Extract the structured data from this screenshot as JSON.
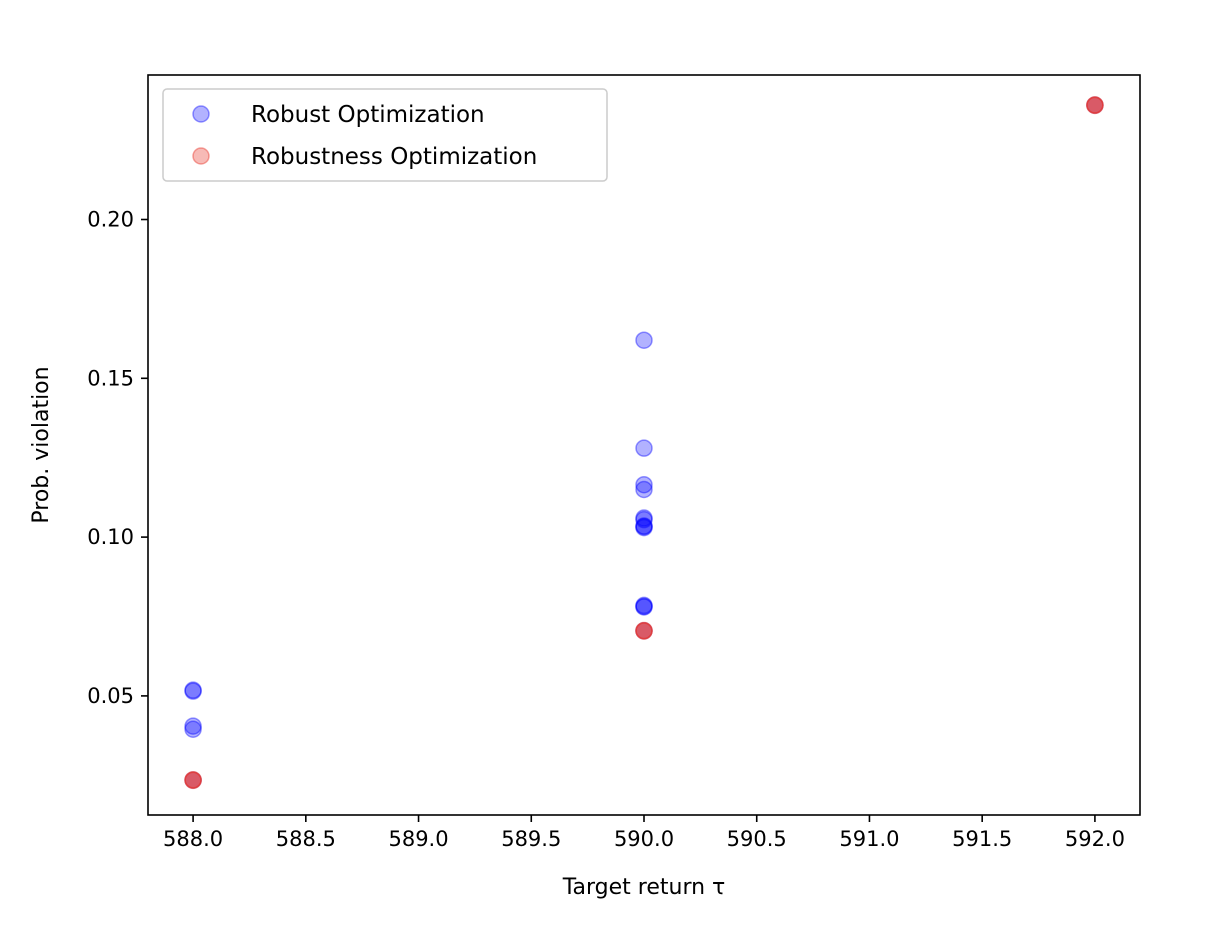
{
  "chart_data": {
    "type": "scatter",
    "title": "",
    "xlabel": "Target return τ",
    "ylabel": "Prob. violation",
    "xlim": [
      587.8,
      592.2
    ],
    "ylim": [
      0.0125,
      0.2455
    ],
    "xticks": [
      588.0,
      588.5,
      589.0,
      589.5,
      590.0,
      590.5,
      591.0,
      591.5,
      592.0
    ],
    "xtick_labels": [
      "588.0",
      "588.5",
      "589.0",
      "589.5",
      "590.0",
      "590.5",
      "591.0",
      "591.5",
      "592.0"
    ],
    "yticks": [
      0.05,
      0.1,
      0.15,
      0.2
    ],
    "ytick_labels": [
      "0.05",
      "0.10",
      "0.15",
      "0.20"
    ],
    "grid": false,
    "legend_position": "top-left",
    "series": [
      {
        "name": "Robust Optimization",
        "color": "#0000ff",
        "alpha": 0.3,
        "points": [
          {
            "x": 588.0,
            "y": 0.0515
          },
          {
            "x": 588.0,
            "y": 0.0518
          },
          {
            "x": 588.0,
            "y": 0.0395
          },
          {
            "x": 588.0,
            "y": 0.0405
          },
          {
            "x": 588.0,
            "y": 0.0235
          },
          {
            "x": 590.0,
            "y": 0.162
          },
          {
            "x": 590.0,
            "y": 0.128
          },
          {
            "x": 590.0,
            "y": 0.1165
          },
          {
            "x": 590.0,
            "y": 0.115
          },
          {
            "x": 590.0,
            "y": 0.106
          },
          {
            "x": 590.0,
            "y": 0.1055
          },
          {
            "x": 590.0,
            "y": 0.1035
          },
          {
            "x": 590.0,
            "y": 0.1033
          },
          {
            "x": 590.0,
            "y": 0.103
          },
          {
            "x": 590.0,
            "y": 0.0785
          },
          {
            "x": 590.0,
            "y": 0.0782
          },
          {
            "x": 590.0,
            "y": 0.078
          },
          {
            "x": 590.0,
            "y": 0.0705
          },
          {
            "x": 592.0,
            "y": 0.236
          }
        ]
      },
      {
        "name": "Robustness Optimization",
        "color": "#e8392f",
        "alpha": 0.35,
        "points": [
          {
            "x": 588.0,
            "y": 0.0235
          },
          {
            "x": 588.0,
            "y": 0.0236
          },
          {
            "x": 588.0,
            "y": 0.0234
          },
          {
            "x": 590.0,
            "y": 0.0705
          },
          {
            "x": 590.0,
            "y": 0.0706
          },
          {
            "x": 590.0,
            "y": 0.0704
          },
          {
            "x": 592.0,
            "y": 0.236
          },
          {
            "x": 592.0,
            "y": 0.2361
          },
          {
            "x": 592.0,
            "y": 0.2359
          }
        ]
      }
    ]
  }
}
